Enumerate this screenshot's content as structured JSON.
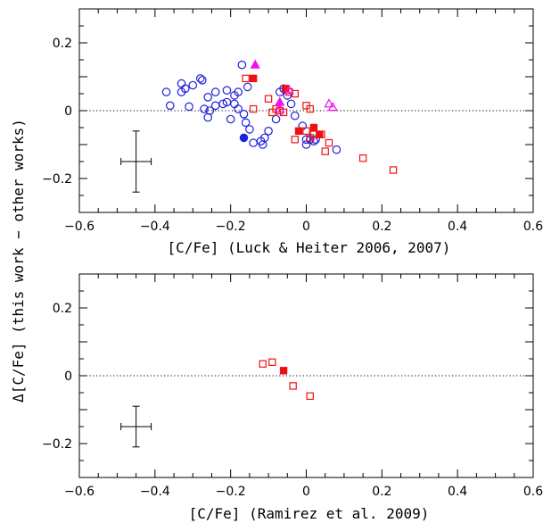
{
  "shared_ylabel": "Δ[C/Fe] (this work − other works)",
  "colors": {
    "blue": "#1f1fe0",
    "red": "#ee1111",
    "magenta": "#ee11ee",
    "black": "#000000"
  },
  "chart_data": [
    {
      "type": "scatter",
      "xlabel": "[C/Fe] (Luck & Heiter 2006, 2007)",
      "ylabel": "",
      "xlim": [
        -0.6,
        0.6
      ],
      "ylim": [
        -0.3,
        0.3
      ],
      "xticks": [
        -0.6,
        -0.4,
        -0.2,
        0,
        0.2,
        0.4,
        0.6
      ],
      "xtick_labels": [
        "−0.6",
        "−0.4",
        "−0.2",
        "0",
        "0.2",
        "0.4",
        "0.6"
      ],
      "yticks": [
        0.2,
        0,
        -0.2
      ],
      "ytick_labels": [
        "0.2",
        "0",
        "−0.2"
      ],
      "zero_line": "dotted",
      "error_bar": {
        "x": -0.45,
        "y": -0.15,
        "xerr": 0.04,
        "yerr": 0.09
      },
      "series": [
        {
          "marker": "circle-open",
          "color": "blue",
          "points": [
            [
              -0.37,
              0.055
            ],
            [
              -0.36,
              0.015
            ],
            [
              -0.33,
              0.08
            ],
            [
              -0.33,
              0.055
            ],
            [
              -0.32,
              0.065
            ],
            [
              -0.31,
              0.012
            ],
            [
              -0.3,
              0.075
            ],
            [
              -0.28,
              0.095
            ],
            [
              -0.275,
              0.09
            ],
            [
              -0.27,
              0.005
            ],
            [
              -0.26,
              -0.02
            ],
            [
              -0.26,
              0.04
            ],
            [
              -0.255,
              0.0
            ],
            [
              -0.24,
              0.015
            ],
            [
              -0.24,
              0.055
            ],
            [
              -0.22,
              0.02
            ],
            [
              -0.21,
              0.025
            ],
            [
              -0.21,
              0.06
            ],
            [
              -0.2,
              -0.025
            ],
            [
              -0.19,
              0.02
            ],
            [
              -0.19,
              0.045
            ],
            [
              -0.18,
              0.055
            ],
            [
              -0.18,
              0.005
            ],
            [
              -0.17,
              0.135
            ],
            [
              -0.165,
              -0.01
            ],
            [
              -0.16,
              -0.035
            ],
            [
              -0.155,
              0.07
            ],
            [
              -0.15,
              -0.055
            ],
            [
              -0.14,
              -0.095
            ],
            [
              -0.12,
              -0.09
            ],
            [
              -0.115,
              -0.1
            ],
            [
              -0.11,
              -0.08
            ],
            [
              -0.1,
              -0.06
            ],
            [
              -0.08,
              -0.025
            ],
            [
              -0.07,
              0.055
            ],
            [
              -0.06,
              0.065
            ],
            [
              -0.05,
              0.045
            ],
            [
              -0.04,
              0.02
            ],
            [
              -0.03,
              -0.015
            ],
            [
              -0.01,
              -0.045
            ],
            [
              0.0,
              -0.1
            ],
            [
              0.0,
              -0.085
            ],
            [
              0.01,
              -0.085
            ],
            [
              0.02,
              -0.09
            ],
            [
              0.025,
              -0.085
            ],
            [
              0.08,
              -0.115
            ]
          ]
        },
        {
          "marker": "circle-filled",
          "color": "blue",
          "points": [
            [
              -0.165,
              -0.08
            ]
          ]
        },
        {
          "marker": "square-open",
          "color": "red",
          "points": [
            [
              -0.16,
              0.095
            ],
            [
              -0.14,
              0.005
            ],
            [
              -0.1,
              0.035
            ],
            [
              -0.09,
              -0.005
            ],
            [
              -0.08,
              0.005
            ],
            [
              -0.07,
              0.0
            ],
            [
              -0.06,
              -0.005
            ],
            [
              -0.045,
              0.055
            ],
            [
              -0.03,
              0.05
            ],
            [
              -0.03,
              -0.085
            ],
            [
              0.0,
              0.015
            ],
            [
              0.0,
              -0.06
            ],
            [
              0.01,
              0.005
            ],
            [
              0.01,
              -0.08
            ],
            [
              0.02,
              -0.07
            ],
            [
              0.04,
              -0.07
            ],
            [
              0.05,
              -0.12
            ],
            [
              0.06,
              -0.095
            ],
            [
              0.15,
              -0.14
            ],
            [
              0.23,
              -0.175
            ]
          ]
        },
        {
          "marker": "square-filled",
          "color": "red",
          "points": [
            [
              -0.14,
              0.095
            ],
            [
              -0.055,
              0.065
            ],
            [
              -0.02,
              -0.06
            ],
            [
              0.02,
              -0.05
            ],
            [
              0.035,
              -0.07
            ]
          ]
        },
        {
          "marker": "triangle-open",
          "color": "magenta",
          "points": [
            [
              -0.07,
              0.005
            ],
            [
              -0.045,
              0.06
            ],
            [
              0.06,
              0.02
            ],
            [
              0.07,
              0.01
            ]
          ]
        },
        {
          "marker": "triangle-filled",
          "color": "magenta",
          "points": [
            [
              -0.135,
              0.135
            ],
            [
              -0.07,
              0.025
            ]
          ]
        }
      ]
    },
    {
      "type": "scatter",
      "xlabel": "[C/Fe] (Ramirez et al. 2009)",
      "ylabel": "",
      "xlim": [
        -0.6,
        0.6
      ],
      "ylim": [
        -0.3,
        0.3
      ],
      "xticks": [
        -0.6,
        -0.4,
        -0.2,
        0,
        0.2,
        0.4,
        0.6
      ],
      "xtick_labels": [
        "−0.6",
        "−0.4",
        "−0.2",
        "0",
        "0.2",
        "0.4",
        "0.6"
      ],
      "yticks": [
        0.2,
        0,
        -0.2
      ],
      "ytick_labels": [
        "0.2",
        "0",
        "−0.2"
      ],
      "zero_line": "dotted",
      "error_bar": {
        "x": -0.45,
        "y": -0.15,
        "xerr": 0.04,
        "yerr": 0.06
      },
      "series": [
        {
          "marker": "square-open",
          "color": "red",
          "points": [
            [
              -0.115,
              0.035
            ],
            [
              -0.09,
              0.04
            ],
            [
              -0.035,
              -0.03
            ],
            [
              0.01,
              -0.06
            ]
          ]
        },
        {
          "marker": "square-filled",
          "color": "red",
          "points": [
            [
              -0.06,
              0.015
            ]
          ]
        }
      ]
    }
  ]
}
